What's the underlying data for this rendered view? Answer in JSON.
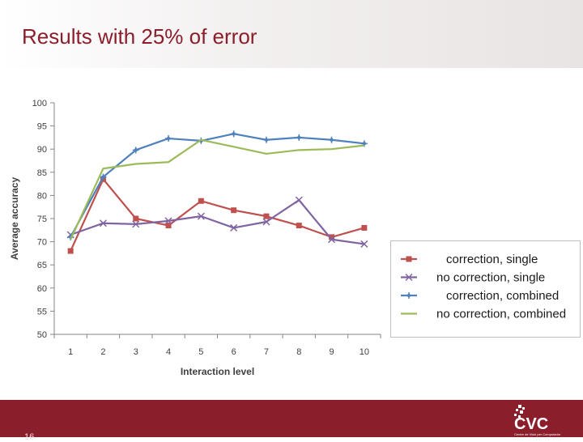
{
  "slide": {
    "title": "Results with 25% of error",
    "page_number": "16"
  },
  "logo": {
    "text": "CVC",
    "tagline": "Centre de Visió per Computador"
  },
  "chart_data": {
    "type": "line",
    "title": "",
    "xlabel": "Interaction level",
    "ylabel": "Average accuracy",
    "x": [
      1,
      2,
      3,
      4,
      5,
      6,
      7,
      8,
      9,
      10
    ],
    "xlim": [
      0.5,
      10.5
    ],
    "ylim": [
      50,
      100
    ],
    "yticks": [
      50,
      55,
      60,
      65,
      70,
      75,
      80,
      85,
      90,
      95,
      100
    ],
    "grid": false,
    "legend_position": "right",
    "series": [
      {
        "name": "correction, single",
        "color": "#c0504d",
        "marker": "square",
        "values": [
          68,
          83.5,
          75,
          73.5,
          78.8,
          76.8,
          75.5,
          73.5,
          71,
          73
        ]
      },
      {
        "name": "no correction, single",
        "color": "#8064a2",
        "marker": "x",
        "values": [
          71.5,
          74,
          73.8,
          74.5,
          75.5,
          73,
          74.3,
          79,
          70.5,
          69.5
        ]
      },
      {
        "name": "correction, combined",
        "color": "#4f81bd",
        "marker": "plus",
        "values": [
          71,
          84,
          89.8,
          92.3,
          91.8,
          93.3,
          92,
          92.5,
          92,
          91.2
        ]
      },
      {
        "name": "no correction, combined",
        "color": "#9bbb59",
        "marker": "none",
        "values": [
          70.5,
          85.8,
          86.8,
          87.2,
          92,
          90.5,
          89,
          89.8,
          90,
          90.8
        ]
      }
    ]
  }
}
